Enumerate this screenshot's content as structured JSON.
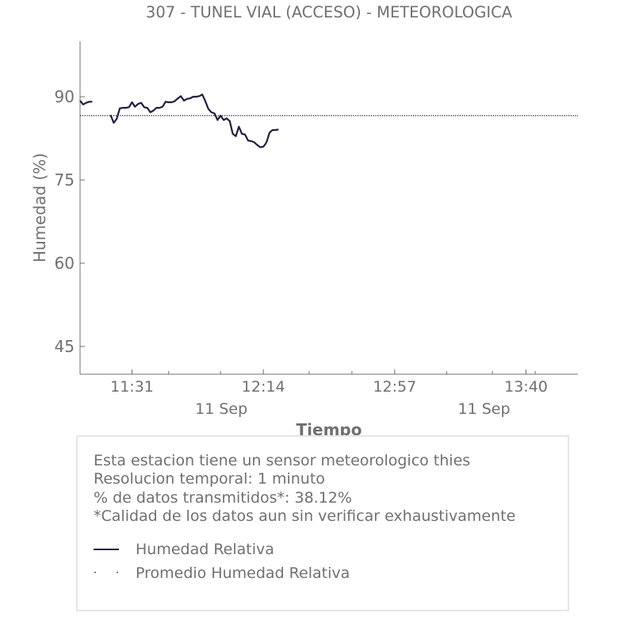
{
  "chart_data": {
    "type": "line",
    "title": "307 - TUNEL VIAL (ACCESO) - METEOROLOGICA",
    "xlabel": "Tiempo",
    "ylabel": "Humedad (%)",
    "ylim": [
      40,
      100
    ],
    "yticks": [
      45,
      60,
      75,
      90
    ],
    "xlim": [
      "11:14",
      "13:57"
    ],
    "xticks": [
      {
        "time": "11:31",
        "label": "11:31",
        "date": ""
      },
      {
        "time": "12:14",
        "label": "12:14",
        "date": "11 Sep"
      },
      {
        "time": "12:57",
        "label": "12:57",
        "date": ""
      },
      {
        "time": "13:40",
        "label": "13:40",
        "date": "11 Sep"
      }
    ],
    "minor_xticks": [
      "11:43",
      "12:00",
      "12:29",
      "12:43",
      "13:14",
      "13:29",
      "13:43"
    ],
    "grid": false,
    "series": [
      {
        "name": "Humedad Relativa",
        "color": "#1f1f3d",
        "style": "solid",
        "segments": [
          {
            "x": [
              "11:14",
              "11:15",
              "11:16",
              "11:17",
              "11:18"
            ],
            "y": [
              89.3,
              88.6,
              88.9,
              89.1,
              89.1
            ]
          },
          {
            "x": [
              "11:24",
              "11:25",
              "11:26",
              "11:27",
              "11:28",
              "11:29",
              "11:30",
              "11:31",
              "11:32",
              "11:33",
              "11:34",
              "11:35",
              "11:36",
              "11:37",
              "11:38",
              "11:39",
              "11:40",
              "11:41",
              "11:42",
              "11:43",
              "11:44",
              "11:45",
              "11:46",
              "11:47",
              "11:48",
              "11:49",
              "11:50",
              "11:51",
              "11:52",
              "11:53",
              "11:54",
              "11:55",
              "11:56",
              "11:57",
              "11:58",
              "11:59",
              "12:00",
              "12:01",
              "12:02",
              "12:03",
              "12:04",
              "12:05",
              "12:06",
              "12:07",
              "12:08",
              "12:09",
              "12:10",
              "12:11",
              "12:12",
              "12:13",
              "12:14",
              "12:15"
            ],
            "y": [
              86.7,
              85.3,
              86.0,
              87.9,
              88.0,
              88.0,
              88.1,
              89.0,
              88.2,
              88.7,
              88.9,
              88.1,
              88.0,
              87.2,
              87.5,
              88.0,
              88.0,
              88.2,
              89.1,
              89.0,
              89.0,
              89.2,
              89.7,
              90.1,
              89.3,
              89.6,
              89.7,
              90.0,
              90.0,
              90.1,
              90.4,
              89.2,
              87.8,
              87.2,
              87.0,
              85.8,
              86.6,
              85.8,
              86.1,
              85.6,
              83.3,
              82.9,
              84.6,
              83.3,
              83.2,
              82.1,
              82.0,
              81.8,
              81.3,
              80.9,
              81.0,
              81.7
            ]
          },
          {
            "x": [
              "12:15",
              "12:16",
              "12:17",
              "12:18",
              "12:19"
            ],
            "y": [
              81.7,
              83.5,
              84.0,
              84.0,
              84.1
            ]
          }
        ]
      },
      {
        "name": "Promedio Humedad Relativa",
        "color": "#1f1f3d",
        "style": "dotted",
        "x": [
          "11:14",
          "13:57"
        ],
        "y": [
          86.6,
          86.6
        ]
      }
    ]
  },
  "info": {
    "lines": [
      "Esta estacion tiene un sensor meteorologico thies",
      "Resolucion temporal: 1 minuto",
      "% de datos transmitidos*: 38.12%",
      "*Calidad de los datos aun sin verificar exhaustivamente"
    ],
    "legend": [
      {
        "label": "Humedad Relativa"
      },
      {
        "label": "Promedio Humedad Relativa"
      }
    ]
  }
}
